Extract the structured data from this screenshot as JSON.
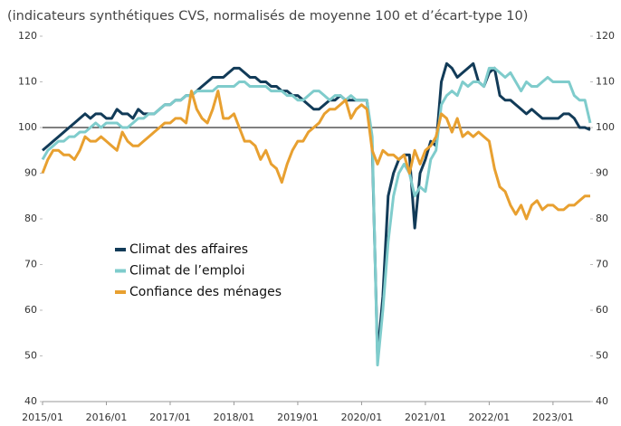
{
  "chart_data": {
    "type": "line",
    "subtitle": "(indicateurs synthétiques CVS, normalisés de moyenne 100 et d’écart-type 10)",
    "categories": [
      "2015/01",
      null,
      null,
      null,
      null,
      null,
      null,
      null,
      null,
      null,
      null,
      null,
      "2016/01",
      null,
      null,
      null,
      null,
      null,
      null,
      null,
      null,
      null,
      null,
      null,
      "2017/01",
      null,
      null,
      null,
      null,
      null,
      null,
      null,
      null,
      null,
      null,
      null,
      "2018/01",
      null,
      null,
      null,
      null,
      null,
      null,
      null,
      null,
      null,
      null,
      null,
      "2019/01",
      null,
      null,
      null,
      null,
      null,
      null,
      null,
      null,
      null,
      null,
      null,
      "2020/01",
      null,
      null,
      null,
      null,
      null,
      null,
      null,
      null,
      null,
      null,
      null,
      "2021/01",
      null,
      null,
      null,
      null,
      null,
      null,
      null,
      null,
      null,
      null,
      null,
      "2022/01",
      null,
      null,
      null,
      null,
      null,
      null,
      null,
      null,
      null,
      null,
      null,
      "2023/01",
      null,
      null,
      null,
      null,
      null,
      null,
      null
    ],
    "series": [
      {
        "name": "Climat des affaires",
        "color": "#123b58",
        "values": [
          95,
          96,
          97,
          98,
          99,
          100,
          101,
          102,
          103,
          102,
          103,
          103,
          102,
          102,
          104,
          103,
          103,
          102,
          104,
          103,
          103,
          103,
          104,
          105,
          105,
          106,
          106,
          107,
          107,
          108,
          109,
          110,
          111,
          111,
          111,
          112,
          113,
          113,
          112,
          111,
          111,
          110,
          110,
          109,
          109,
          108,
          108,
          107,
          107,
          106,
          105,
          104,
          104,
          105,
          106,
          106,
          107,
          106,
          106,
          106,
          106,
          106,
          96,
          50,
          63,
          85,
          90,
          93,
          94,
          94,
          78,
          90,
          93,
          97,
          96,
          110,
          114,
          113,
          111,
          112,
          113,
          114,
          110,
          109,
          112,
          113,
          107,
          106,
          106,
          105,
          104,
          103,
          104,
          103,
          102,
          102,
          102,
          102,
          103,
          103,
          102,
          100,
          100,
          99.5
        ]
      },
      {
        "name": "Climat de l’emploi",
        "color": "#7fcccc",
        "values": [
          93,
          95,
          96,
          97,
          97,
          98,
          98,
          99,
          99,
          100,
          101,
          100,
          101,
          101,
          101,
          100,
          100,
          101,
          102,
          102,
          103,
          103,
          104,
          105,
          105,
          106,
          106,
          107,
          107,
          108,
          108,
          108,
          108,
          109,
          109,
          109,
          109,
          110,
          110,
          109,
          109,
          109,
          109,
          108,
          108,
          108,
          107,
          107,
          106,
          106,
          107,
          108,
          108,
          107,
          106,
          107,
          107,
          106,
          107,
          106,
          106,
          106,
          98,
          48,
          60,
          75,
          85,
          90,
          92,
          90,
          85,
          87,
          86,
          93,
          95,
          105,
          107,
          108,
          107,
          110,
          109,
          110,
          110,
          109,
          113,
          113,
          112,
          111,
          112,
          110,
          108,
          110,
          109,
          109,
          110,
          111,
          110,
          110,
          110,
          110,
          107,
          106,
          106,
          101
        ]
      },
      {
        "name": "Confiance des ménages",
        "color": "#e8a030",
        "values": [
          90,
          93,
          95,
          95,
          94,
          94,
          93,
          95,
          98,
          97,
          97,
          98,
          97,
          96,
          95,
          99,
          97,
          96,
          96,
          97,
          98,
          99,
          100,
          101,
          101,
          102,
          102,
          101,
          108,
          104,
          102,
          101,
          104,
          108,
          102,
          102,
          103,
          100,
          97,
          97,
          96,
          93,
          95,
          92,
          91,
          88,
          92,
          95,
          97,
          97,
          99,
          100,
          101,
          103,
          104,
          104,
          105,
          106,
          102,
          104,
          105,
          104,
          95,
          92,
          95,
          94,
          94,
          93,
          94,
          90,
          95,
          92,
          95,
          96,
          98,
          103,
          102,
          99,
          102,
          98,
          99,
          98,
          99,
          98,
          97,
          91,
          87,
          86,
          83,
          81,
          83,
          80,
          83,
          84,
          82,
          83,
          83,
          82,
          82,
          83,
          83,
          84,
          85,
          85
        ]
      }
    ],
    "ylim": [
      40,
      120
    ],
    "yticks": [
      40,
      50,
      60,
      70,
      80,
      90,
      100,
      110,
      120
    ],
    "y2lim": [
      40,
      120
    ],
    "y2ticks": [
      40,
      50,
      60,
      70,
      80,
      90,
      100,
      110,
      120
    ],
    "hline": 100,
    "grid": false
  }
}
